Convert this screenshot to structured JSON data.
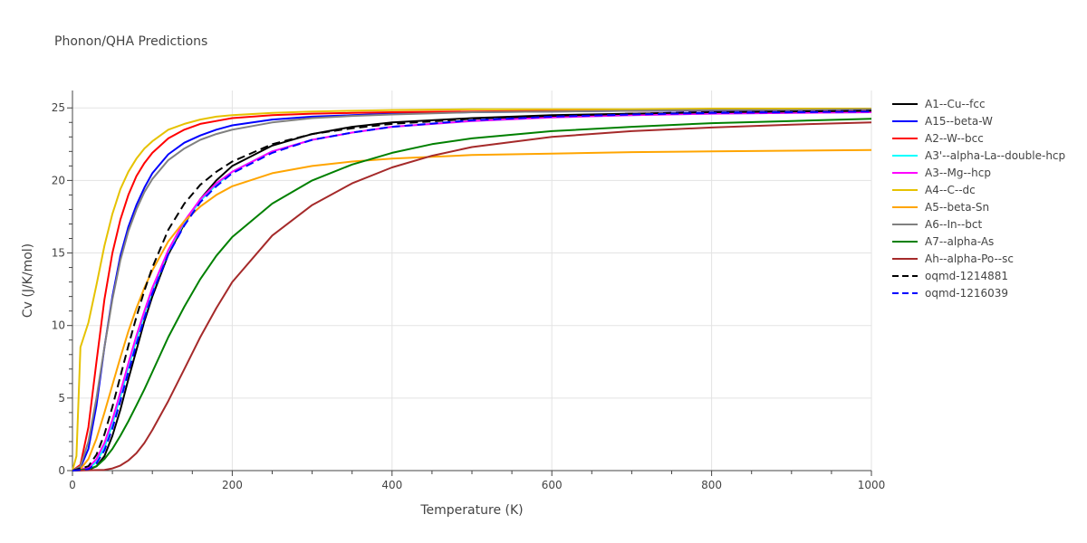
{
  "chart_data": {
    "type": "line",
    "title": "Phonon/QHA Predictions",
    "xlabel": "Temperature (K)",
    "ylabel": "Cv (J/K/mol)",
    "xlim": [
      0,
      1000
    ],
    "ylim": [
      0,
      26.2
    ],
    "xticks": [
      0,
      200,
      400,
      600,
      800,
      1000
    ],
    "yticks": [
      0,
      5,
      10,
      15,
      20,
      25
    ],
    "grid": true,
    "legend_position": "right",
    "series": [
      {
        "name": "A1--Cu--fcc",
        "color": "#000000",
        "dash": "solid",
        "x": [
          0,
          20,
          30,
          40,
          50,
          60,
          70,
          80,
          90,
          100,
          120,
          140,
          160,
          180,
          200,
          250,
          300,
          350,
          400,
          500,
          600,
          700,
          800,
          900,
          1000
        ],
        "y": [
          0,
          0.05,
          0.3,
          1.0,
          2.4,
          4.2,
          6.3,
          8.3,
          10.3,
          12.0,
          14.9,
          17.0,
          18.7,
          20.0,
          21.0,
          22.4,
          23.2,
          23.7,
          24.0,
          24.3,
          24.5,
          24.6,
          24.65,
          24.7,
          24.7
        ]
      },
      {
        "name": "A15--beta-W",
        "color": "#0000ff",
        "dash": "solid",
        "x": [
          0,
          10,
          20,
          30,
          40,
          50,
          60,
          70,
          80,
          90,
          100,
          120,
          140,
          160,
          180,
          200,
          250,
          300,
          350,
          400,
          500,
          600,
          700,
          800,
          900,
          1000
        ],
        "y": [
          0,
          0.2,
          1.5,
          4.5,
          8.5,
          12.0,
          14.8,
          16.8,
          18.3,
          19.5,
          20.5,
          21.8,
          22.6,
          23.1,
          23.5,
          23.8,
          24.2,
          24.4,
          24.5,
          24.6,
          24.7,
          24.75,
          24.8,
          24.8,
          24.8,
          24.85
        ]
      },
      {
        "name": "A2--W--bcc",
        "color": "#ff0000",
        "dash": "solid",
        "x": [
          0,
          10,
          20,
          30,
          40,
          50,
          60,
          70,
          80,
          90,
          100,
          120,
          140,
          160,
          180,
          200,
          250,
          300,
          350,
          400,
          500,
          600,
          700,
          800,
          900,
          1000
        ],
        "y": [
          0,
          0.4,
          3.0,
          7.5,
          11.8,
          15.0,
          17.3,
          19.0,
          20.3,
          21.2,
          21.9,
          22.9,
          23.5,
          23.9,
          24.1,
          24.3,
          24.5,
          24.6,
          24.65,
          24.7,
          24.75,
          24.8,
          24.8,
          24.85,
          24.85,
          24.85
        ]
      },
      {
        "name": "A3'--alpha-La--double-hcp",
        "color": "#00ffff",
        "dash": "solid",
        "x": [
          0,
          20,
          30,
          40,
          50,
          60,
          70,
          80,
          90,
          100,
          120,
          140,
          160,
          180,
          200,
          250,
          300,
          350,
          400,
          500,
          600,
          700,
          800,
          900,
          1000
        ],
        "y": [
          0,
          0.15,
          0.6,
          1.6,
          3.2,
          5.1,
          7.1,
          9.0,
          10.8,
          12.4,
          15.1,
          17.1,
          18.6,
          19.7,
          20.6,
          22.0,
          22.8,
          23.3,
          23.7,
          24.1,
          24.35,
          24.5,
          24.6,
          24.65,
          24.7
        ]
      },
      {
        "name": "A3--Mg--hcp",
        "color": "#ff00ff",
        "dash": "solid",
        "x": [
          0,
          20,
          30,
          40,
          50,
          60,
          70,
          80,
          90,
          100,
          120,
          140,
          160,
          180,
          200,
          250,
          300,
          350,
          400,
          500,
          600,
          700,
          800,
          900,
          1000
        ],
        "y": [
          0,
          0.2,
          0.8,
          1.9,
          3.5,
          5.4,
          7.4,
          9.3,
          11.0,
          12.6,
          15.2,
          17.2,
          18.7,
          19.8,
          20.6,
          22.0,
          22.8,
          23.3,
          23.7,
          24.1,
          24.35,
          24.5,
          24.6,
          24.65,
          24.7
        ]
      },
      {
        "name": "A4--C--dc",
        "color": "#e6c200",
        "dash": "solid",
        "x": [
          0,
          5,
          10,
          20,
          30,
          40,
          50,
          60,
          70,
          80,
          90,
          100,
          120,
          140,
          160,
          180,
          200,
          250,
          300,
          350,
          400,
          500,
          600,
          700,
          800,
          900,
          1000
        ],
        "y": [
          0,
          1.0,
          8.5,
          10.2,
          12.8,
          15.5,
          17.7,
          19.4,
          20.6,
          21.5,
          22.2,
          22.7,
          23.5,
          23.9,
          24.2,
          24.4,
          24.5,
          24.65,
          24.75,
          24.8,
          24.85,
          24.9,
          24.9,
          24.9,
          24.95,
          24.95,
          24.95
        ]
      },
      {
        "name": "A5--beta-Sn",
        "color": "#ffa500",
        "dash": "solid",
        "x": [
          0,
          10,
          20,
          30,
          40,
          50,
          60,
          70,
          80,
          90,
          100,
          120,
          140,
          160,
          180,
          200,
          250,
          300,
          350,
          400,
          500,
          600,
          700,
          800,
          900,
          1000
        ],
        "y": [
          0,
          0.1,
          0.8,
          2.2,
          4.0,
          5.9,
          7.8,
          9.6,
          11.2,
          12.6,
          13.8,
          15.8,
          17.2,
          18.2,
          19.0,
          19.6,
          20.5,
          21.0,
          21.3,
          21.5,
          21.75,
          21.85,
          21.95,
          22.0,
          22.05,
          22.1
        ]
      },
      {
        "name": "A6--In--bct",
        "color": "#808080",
        "dash": "solid",
        "x": [
          0,
          10,
          20,
          30,
          40,
          50,
          60,
          70,
          80,
          90,
          100,
          120,
          140,
          160,
          180,
          200,
          250,
          300,
          350,
          400,
          500,
          600,
          700,
          800,
          900,
          1000
        ],
        "y": [
          0,
          0.3,
          2.0,
          5.0,
          8.5,
          11.8,
          14.5,
          16.5,
          18.0,
          19.2,
          20.1,
          21.4,
          22.2,
          22.8,
          23.2,
          23.5,
          24.0,
          24.3,
          24.45,
          24.55,
          24.7,
          24.75,
          24.8,
          24.85,
          24.85,
          24.9
        ]
      },
      {
        "name": "A7--alpha-As",
        "color": "#008000",
        "dash": "solid",
        "x": [
          0,
          20,
          30,
          40,
          50,
          60,
          70,
          80,
          90,
          100,
          120,
          140,
          160,
          180,
          200,
          250,
          300,
          350,
          400,
          450,
          500,
          600,
          700,
          800,
          900,
          1000
        ],
        "y": [
          0,
          0.1,
          0.3,
          0.8,
          1.5,
          2.4,
          3.4,
          4.5,
          5.6,
          6.8,
          9.2,
          11.3,
          13.2,
          14.8,
          16.1,
          18.4,
          20.0,
          21.1,
          21.9,
          22.5,
          22.9,
          23.4,
          23.7,
          23.95,
          24.1,
          24.25
        ]
      },
      {
        "name": "Ah--alpha-Po--sc",
        "color": "#a52a2a",
        "dash": "solid",
        "x": [
          0,
          40,
          50,
          60,
          70,
          80,
          90,
          100,
          120,
          140,
          160,
          180,
          200,
          250,
          300,
          350,
          400,
          450,
          500,
          600,
          700,
          800,
          900,
          1000
        ],
        "y": [
          0,
          0.05,
          0.15,
          0.35,
          0.7,
          1.2,
          1.9,
          2.8,
          4.8,
          7.0,
          9.2,
          11.2,
          13.0,
          16.2,
          18.3,
          19.8,
          20.9,
          21.7,
          22.3,
          23.0,
          23.4,
          23.65,
          23.85,
          24.0
        ]
      },
      {
        "name": "oqmd-1214881",
        "color": "#000000",
        "dash": "dash",
        "x": [
          0,
          20,
          30,
          40,
          50,
          60,
          70,
          80,
          90,
          100,
          120,
          140,
          160,
          180,
          200,
          250,
          300,
          350,
          400,
          500,
          600,
          700,
          800,
          900,
          1000
        ],
        "y": [
          0,
          0.3,
          1.1,
          2.5,
          4.4,
          6.5,
          8.6,
          10.6,
          12.4,
          14.0,
          16.6,
          18.4,
          19.7,
          20.6,
          21.3,
          22.5,
          23.2,
          23.6,
          23.9,
          24.25,
          24.45,
          24.6,
          24.7,
          24.75,
          24.8
        ]
      },
      {
        "name": "oqmd-1216039",
        "color": "#0000ff",
        "dash": "dash",
        "x": [
          0,
          20,
          30,
          40,
          50,
          60,
          70,
          80,
          90,
          100,
          120,
          140,
          160,
          180,
          200,
          250,
          300,
          350,
          400,
          500,
          600,
          700,
          800,
          900,
          1000
        ],
        "y": [
          0,
          0.1,
          0.5,
          1.4,
          2.9,
          4.8,
          6.8,
          8.7,
          10.5,
          12.2,
          14.9,
          16.9,
          18.5,
          19.6,
          20.5,
          21.9,
          22.8,
          23.3,
          23.7,
          24.15,
          24.4,
          24.55,
          24.65,
          24.7,
          24.75
        ]
      }
    ]
  }
}
